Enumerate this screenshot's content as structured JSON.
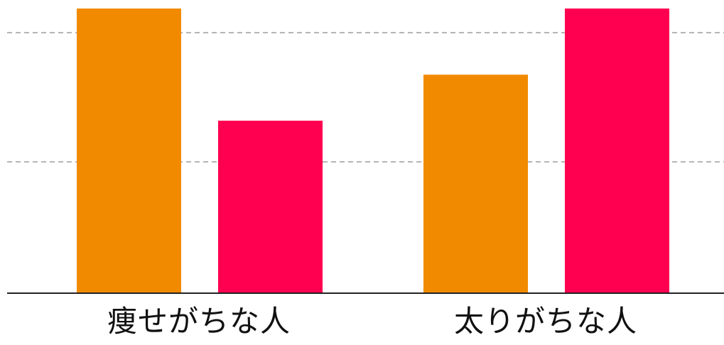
{
  "chart_data": {
    "type": "bar",
    "categories": [
      "痩せがちな人",
      "太りがちな人"
    ],
    "series": [
      {
        "values": [
          100,
          76.7
        ],
        "color": "#f28a00"
      },
      {
        "values": [
          60.5,
          100
        ],
        "color": "#ff0050"
      }
    ],
    "ylim": [
      0,
      100
    ],
    "grid": true,
    "grid_style": "dashed",
    "gridline_values": [
      50,
      100
    ],
    "legend": "none"
  }
}
